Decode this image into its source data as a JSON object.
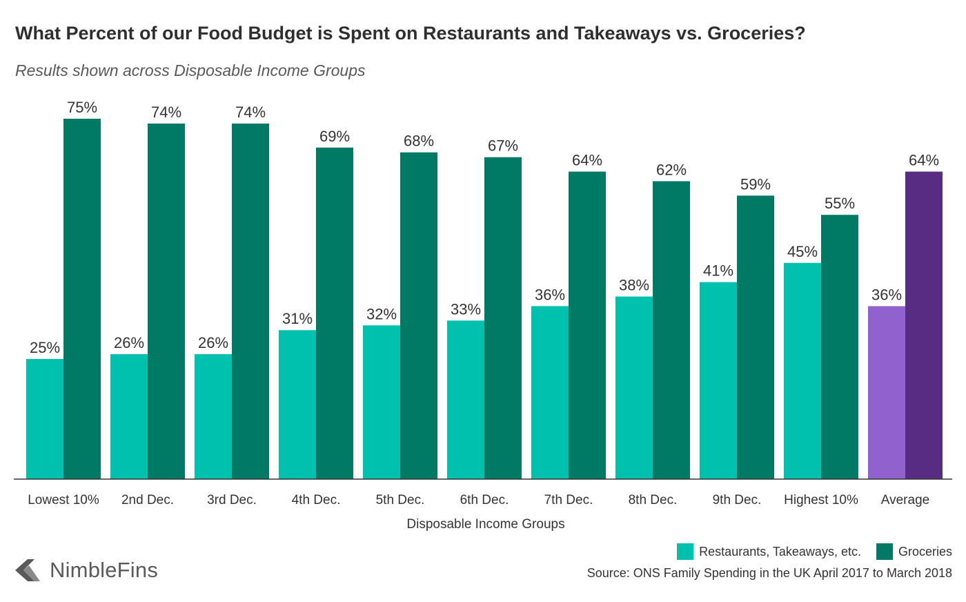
{
  "title": "What Percent of our Food Budget is Spent on Restaurants and Takeaways vs. Groceries?",
  "subtitle": "Results shown across Disposable Income Groups",
  "source": "Source: ONS Family Spending in the UK April 2017 to March 2018",
  "logo_text": "NimbleFins",
  "colors": {
    "restaurants": "#00c1ae",
    "groceries": "#007a64",
    "average_restaurants": "#9162cd",
    "average_groceries": "#582c82",
    "axis": "#333333"
  },
  "chart_data": {
    "type": "bar",
    "xlabel": "Disposable Income Groups",
    "ylabel": "",
    "ylim": [
      0,
      75
    ],
    "grid": false,
    "legend_position": "bottom-right",
    "categories": [
      "Lowest 10%",
      "2nd Dec.",
      "3rd Dec.",
      "4th Dec.",
      "5th Dec.",
      "6th Dec.",
      "7th Dec.",
      "8th Dec.",
      "9th Dec.",
      "Highest 10%",
      "Average"
    ],
    "series": [
      {
        "name": "Restaurants, Takeaways, etc.",
        "values": [
          25,
          26,
          26,
          31,
          32,
          33,
          36,
          38,
          41,
          45,
          36
        ]
      },
      {
        "name": "Groceries",
        "values": [
          75,
          74,
          74,
          69,
          68,
          67,
          64,
          62,
          59,
          55,
          64
        ]
      }
    ],
    "value_suffix": "%"
  }
}
